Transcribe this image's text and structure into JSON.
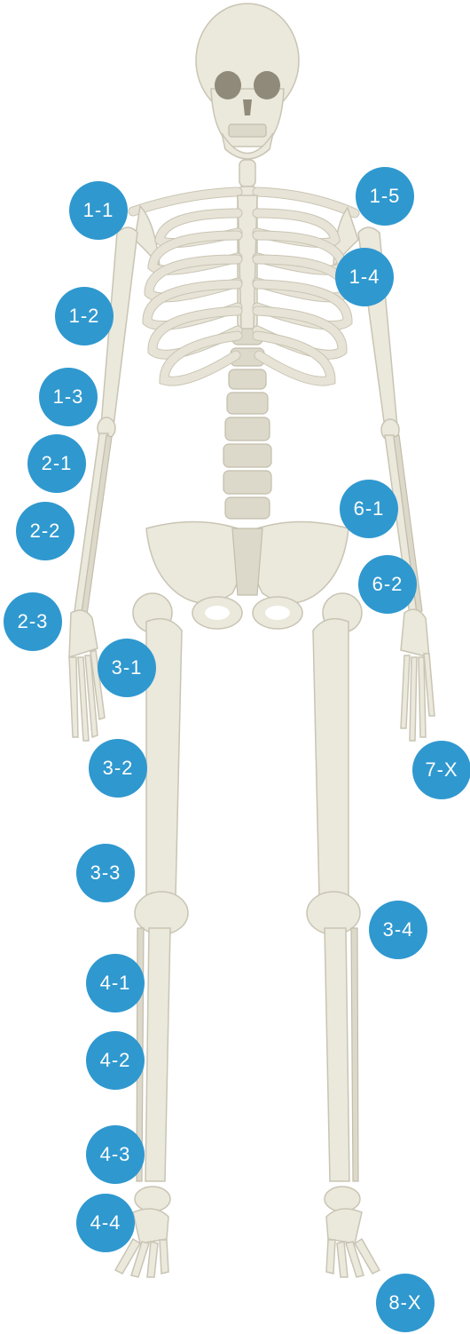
{
  "colors": {
    "marker": "#2f98cf",
    "marker_text": "#ffffff",
    "bone": "#ebe8dc",
    "background": "#ffffff"
  },
  "markers": [
    {
      "id": "1-1",
      "label": "1-1"
    },
    {
      "id": "1-2",
      "label": "1-2"
    },
    {
      "id": "1-3",
      "label": "1-3"
    },
    {
      "id": "1-4",
      "label": "1-4"
    },
    {
      "id": "1-5",
      "label": "1-5"
    },
    {
      "id": "2-1",
      "label": "2-1"
    },
    {
      "id": "2-2",
      "label": "2-2"
    },
    {
      "id": "2-3",
      "label": "2-3"
    },
    {
      "id": "3-1",
      "label": "3-1"
    },
    {
      "id": "3-2",
      "label": "3-2"
    },
    {
      "id": "3-3",
      "label": "3-3"
    },
    {
      "id": "3-4",
      "label": "3-4"
    },
    {
      "id": "4-1",
      "label": "4-1"
    },
    {
      "id": "4-2",
      "label": "4-2"
    },
    {
      "id": "4-3",
      "label": "4-3"
    },
    {
      "id": "4-4",
      "label": "4-4"
    },
    {
      "id": "6-1",
      "label": "6-1"
    },
    {
      "id": "6-2",
      "label": "6-2"
    },
    {
      "id": "7-X",
      "label": "7-X"
    },
    {
      "id": "8-X",
      "label": "8-X"
    }
  ]
}
